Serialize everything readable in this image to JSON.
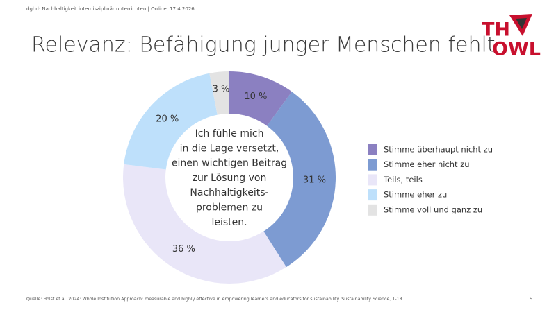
{
  "header": {
    "event": "dghd: Nachhaltigkeit interdisziplinär unterrichten | Online, 17.4.2026",
    "title": "Relevanz: Befähigung junger Menschen fehlt"
  },
  "logo": {
    "line1": "TH",
    "line2": "OWL"
  },
  "chart_data": {
    "type": "donut",
    "center_text": [
      "Ich fühle mich",
      "in die Lage versetzt,",
      "einen wichtigen Beitrag",
      "zur Lösung von",
      "Nachhaltigkeits-",
      "problemen zu",
      "leisten."
    ],
    "series": [
      {
        "name": "Stimme überhaupt nicht zu",
        "color": "#8b80c1",
        "values": [
          10
        ],
        "value_labels": [
          "10 %"
        ]
      },
      {
        "name": "Stimme eher nicht zu",
        "color": "#7d9bd2",
        "values": [
          31
        ],
        "value_labels": [
          "31 %"
        ]
      },
      {
        "name": "Teils, teils",
        "color": "#e9e6f8",
        "values": [
          36
        ],
        "value_labels": [
          "36 %"
        ]
      },
      {
        "name": "Stimme eher zu",
        "color": "#bee0fb",
        "values": [
          20
        ],
        "value_labels": [
          "20 %"
        ]
      },
      {
        "name": "Stimme voll und ganz zu",
        "color": "#e3e3e3",
        "values": [
          3
        ],
        "value_labels": [
          "3 %"
        ]
      }
    ],
    "legend": "right"
  },
  "footer": {
    "source": "Quelle: Holst et al. 2024: Whole Institution Approach: measurable and highly effective in empowering learners and educators for sustainability. Sustainability Science, 1-18.",
    "page": "9"
  }
}
